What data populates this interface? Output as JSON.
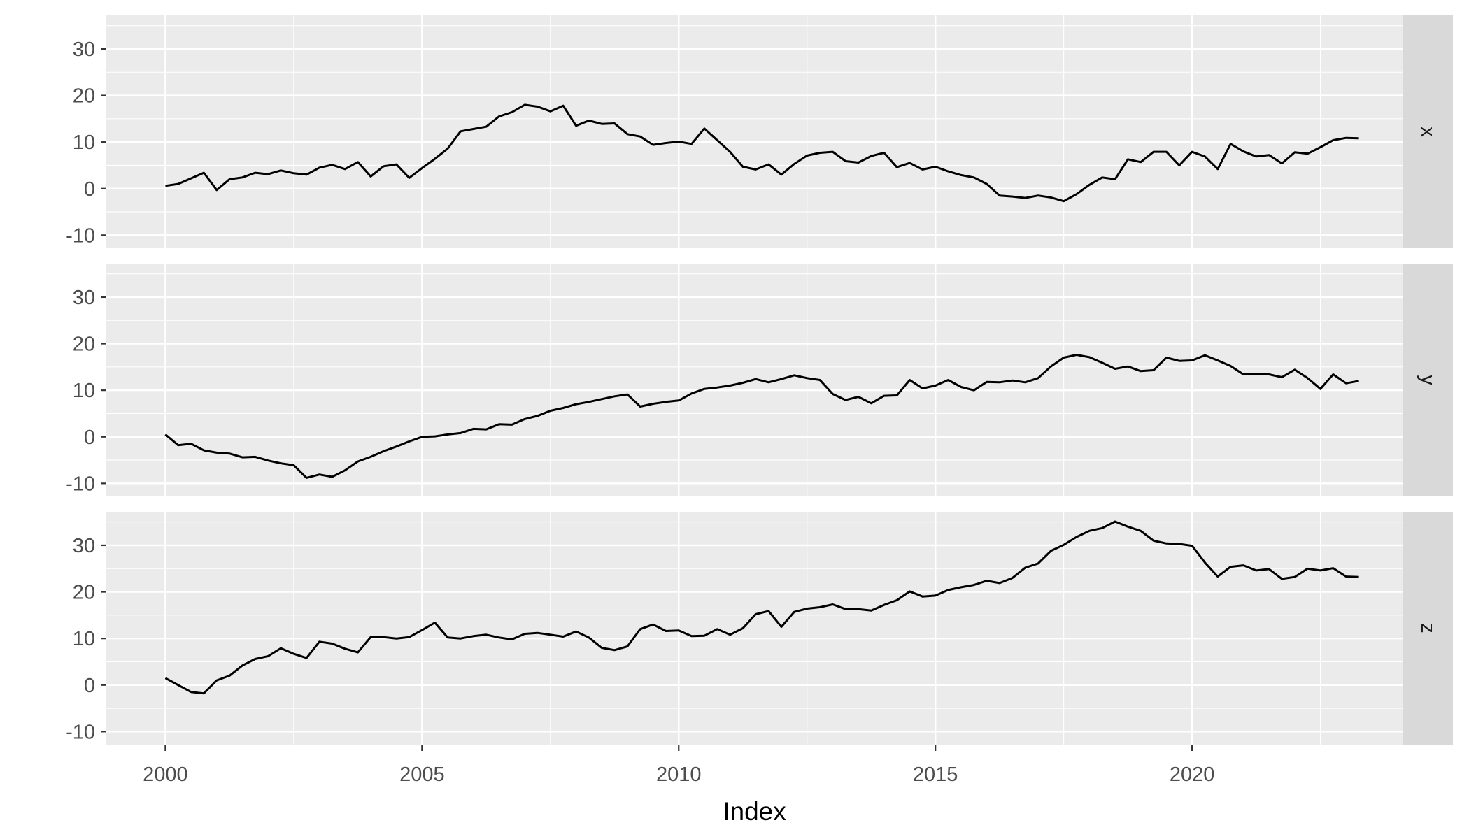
{
  "figure": {
    "kind": "faceted-time-series-plot",
    "x_axis_title": "Index"
  },
  "colors": {
    "panel_background": "#EBEBEB",
    "strip_background": "#D9D9D9",
    "gridline": "#FFFFFF",
    "series_line": "#000000",
    "tick_label_text": "#4D4D4D",
    "strip_label_text": "#1A1A1A",
    "axis_title_text": "#000000",
    "tick_mark": "#333333",
    "page_background": "#FFFFFF"
  },
  "chart_data": {
    "type": "line",
    "title": "",
    "xlabel": "Index",
    "ylabel": "",
    "legend": "none",
    "grid": "on",
    "facet_labels": [
      "x",
      "y",
      "z"
    ],
    "x_tick_labels": [
      "2000",
      "2005",
      "2010",
      "2015",
      "2020"
    ],
    "x_tick_years": [
      2000,
      2005,
      2010,
      2015,
      2020
    ],
    "x_minor_years": [
      2002.5,
      2007.5,
      2012.5,
      2017.5,
      2022.5
    ],
    "y_tick_labels": [
      "-10",
      "0",
      "10",
      "20",
      "30"
    ],
    "y_tick_values": [
      -10,
      0,
      10,
      20,
      30
    ],
    "y_minor_values": [
      -5,
      5,
      15,
      25,
      35
    ],
    "xlim": [
      1998.85,
      2024.1
    ],
    "ylim": [
      -12.8,
      37.2
    ],
    "x_start": 2000.0,
    "x_step": 0.25,
    "n_points": 94,
    "series": [
      {
        "name": "x",
        "values": [
          0.6,
          1.0,
          2.2,
          3.4,
          -0.3,
          2.0,
          2.4,
          3.4,
          3.1,
          3.9,
          3.3,
          3.0,
          4.5,
          5.1,
          4.2,
          5.7,
          2.6,
          4.8,
          5.2,
          2.3,
          4.4,
          6.4,
          8.6,
          12.3,
          12.8,
          13.3,
          15.5,
          16.4,
          18.0,
          17.6,
          16.6,
          17.8,
          13.5,
          14.6,
          13.9,
          14.0,
          11.7,
          11.2,
          9.4,
          9.8,
          10.1,
          9.6,
          12.9,
          10.4,
          7.9,
          4.7,
          4.1,
          5.2,
          3.0,
          5.3,
          7.1,
          7.7,
          7.9,
          5.9,
          5.6,
          7.0,
          7.7,
          4.6,
          5.5,
          4.1,
          4.7,
          3.7,
          2.9,
          2.4,
          1.0,
          -1.5,
          -1.7,
          -2.0,
          -1.5,
          -1.9,
          -2.7,
          -1.2,
          0.8,
          2.4,
          2.0,
          6.3,
          5.7,
          7.9,
          7.9,
          5.0,
          7.9,
          6.9,
          4.2,
          9.6,
          8.0,
          6.9,
          7.2,
          5.4,
          7.8,
          7.5,
          8.9,
          10.4,
          10.9,
          10.8
        ]
      },
      {
        "name": "y",
        "values": [
          0.5,
          -1.8,
          -1.5,
          -2.9,
          -3.4,
          -3.6,
          -4.4,
          -4.3,
          -5.1,
          -5.7,
          -6.1,
          -8.8,
          -8.1,
          -8.6,
          -7.2,
          -5.3,
          -4.3,
          -3.1,
          -2.1,
          -1.0,
          0.0,
          0.1,
          0.5,
          0.8,
          1.7,
          1.6,
          2.7,
          2.6,
          3.8,
          4.5,
          5.6,
          6.2,
          7.0,
          7.5,
          8.1,
          8.7,
          9.1,
          6.5,
          7.1,
          7.5,
          7.8,
          9.3,
          10.3,
          10.6,
          11.0,
          11.6,
          12.4,
          11.7,
          12.4,
          13.2,
          12.6,
          12.2,
          9.2,
          7.9,
          8.6,
          7.2,
          8.8,
          8.9,
          12.2,
          10.4,
          11.0,
          12.2,
          10.7,
          10.0,
          11.8,
          11.7,
          12.1,
          11.7,
          12.6,
          15.1,
          17.0,
          17.6,
          17.1,
          15.9,
          14.6,
          15.1,
          14.1,
          14.3,
          17.0,
          16.3,
          16.4,
          17.5,
          16.4,
          15.2,
          13.4,
          13.5,
          13.4,
          12.8,
          14.4,
          12.6,
          10.3,
          13.4,
          11.5,
          12.0
        ]
      },
      {
        "name": "z",
        "values": [
          1.5,
          0.0,
          -1.5,
          -1.8,
          1.0,
          2.0,
          4.2,
          5.6,
          6.2,
          7.9,
          6.7,
          5.8,
          9.3,
          8.9,
          7.8,
          7.0,
          10.3,
          10.3,
          10.0,
          10.3,
          11.8,
          13.4,
          10.2,
          10.0,
          10.5,
          10.8,
          10.2,
          9.8,
          11.0,
          11.2,
          10.8,
          10.4,
          11.5,
          10.2,
          8.0,
          7.5,
          8.3,
          12.0,
          13.0,
          11.6,
          11.7,
          10.5,
          10.6,
          12.0,
          10.8,
          12.2,
          15.2,
          15.9,
          12.5,
          15.7,
          16.4,
          16.7,
          17.3,
          16.3,
          16.3,
          16.0,
          17.2,
          18.2,
          20.1,
          19.0,
          19.2,
          20.4,
          21.0,
          21.5,
          22.4,
          21.9,
          23.0,
          25.2,
          26.1,
          28.8,
          30.1,
          31.8,
          33.1,
          33.7,
          35.1,
          34.0,
          33.1,
          31.0,
          30.4,
          30.3,
          29.9,
          26.3,
          23.3,
          25.4,
          25.7,
          24.6,
          24.9,
          22.8,
          23.2,
          25.0,
          24.6,
          25.1,
          23.3,
          23.2
        ]
      }
    ]
  }
}
